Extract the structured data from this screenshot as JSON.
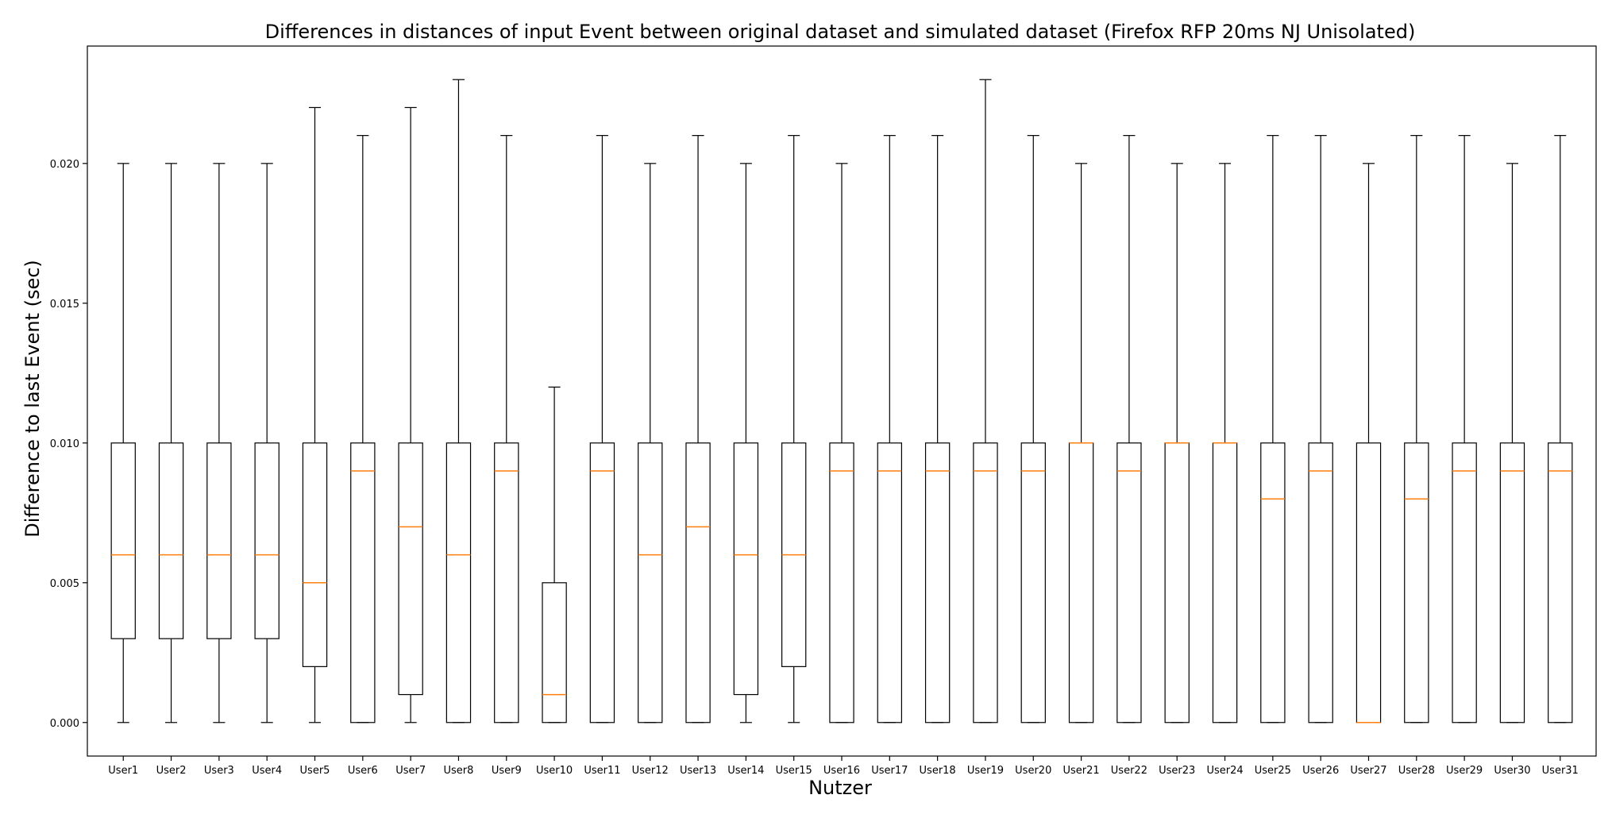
{
  "chart_data": {
    "type": "box",
    "title": "Differences in distances of input Event between original dataset and simulated dataset (Firefox RFP 20ms NJ Unisolated)",
    "xlabel": "Nutzer",
    "ylabel": "Difference to last Event (sec)",
    "ylim": [
      -0.0012,
      0.0242
    ],
    "yticks": [
      "0.000",
      "0.005",
      "0.010",
      "0.015",
      "0.020"
    ],
    "yticks_values": [
      0.0,
      0.005,
      0.01,
      0.015,
      0.02
    ],
    "grid": false,
    "colors": {
      "box": "#000000",
      "median": "#ff7f0e"
    },
    "categories": [
      "User1",
      "User2",
      "User3",
      "User4",
      "User5",
      "User6",
      "User7",
      "User8",
      "User9",
      "User10",
      "User11",
      "User12",
      "User13",
      "User14",
      "User15",
      "User16",
      "User17",
      "User18",
      "User19",
      "User20",
      "User21",
      "User22",
      "User23",
      "User24",
      "User25",
      "User26",
      "User27",
      "User28",
      "User29",
      "User30",
      "User31"
    ],
    "boxes": [
      {
        "whislo": 0.0,
        "q1": 0.003,
        "med": 0.006,
        "q3": 0.01,
        "whishi": 0.02
      },
      {
        "whislo": 0.0,
        "q1": 0.003,
        "med": 0.006,
        "q3": 0.01,
        "whishi": 0.02
      },
      {
        "whislo": 0.0,
        "q1": 0.003,
        "med": 0.006,
        "q3": 0.01,
        "whishi": 0.02
      },
      {
        "whislo": 0.0,
        "q1": 0.003,
        "med": 0.006,
        "q3": 0.01,
        "whishi": 0.02
      },
      {
        "whislo": 0.0,
        "q1": 0.002,
        "med": 0.005,
        "q3": 0.01,
        "whishi": 0.022
      },
      {
        "whislo": 0.0,
        "q1": 0.0,
        "med": 0.009,
        "q3": 0.01,
        "whishi": 0.021
      },
      {
        "whislo": 0.0,
        "q1": 0.001,
        "med": 0.007,
        "q3": 0.01,
        "whishi": 0.022
      },
      {
        "whislo": 0.0,
        "q1": 0.0,
        "med": 0.006,
        "q3": 0.01,
        "whishi": 0.023
      },
      {
        "whislo": 0.0,
        "q1": 0.0,
        "med": 0.009,
        "q3": 0.01,
        "whishi": 0.021
      },
      {
        "whislo": 0.0,
        "q1": 0.0,
        "med": 0.001,
        "q3": 0.005,
        "whishi": 0.012
      },
      {
        "whislo": 0.0,
        "q1": 0.0,
        "med": 0.009,
        "q3": 0.01,
        "whishi": 0.021
      },
      {
        "whislo": 0.0,
        "q1": 0.0,
        "med": 0.006,
        "q3": 0.01,
        "whishi": 0.02
      },
      {
        "whislo": 0.0,
        "q1": 0.0,
        "med": 0.007,
        "q3": 0.01,
        "whishi": 0.021
      },
      {
        "whislo": 0.0,
        "q1": 0.001,
        "med": 0.006,
        "q3": 0.01,
        "whishi": 0.02
      },
      {
        "whislo": 0.0,
        "q1": 0.002,
        "med": 0.006,
        "q3": 0.01,
        "whishi": 0.021
      },
      {
        "whislo": 0.0,
        "q1": 0.0,
        "med": 0.009,
        "q3": 0.01,
        "whishi": 0.02
      },
      {
        "whislo": 0.0,
        "q1": 0.0,
        "med": 0.009,
        "q3": 0.01,
        "whishi": 0.021
      },
      {
        "whislo": 0.0,
        "q1": 0.0,
        "med": 0.009,
        "q3": 0.01,
        "whishi": 0.021
      },
      {
        "whislo": 0.0,
        "q1": 0.0,
        "med": 0.009,
        "q3": 0.01,
        "whishi": 0.023
      },
      {
        "whislo": 0.0,
        "q1": 0.0,
        "med": 0.009,
        "q3": 0.01,
        "whishi": 0.021
      },
      {
        "whislo": 0.0,
        "q1": 0.0,
        "med": 0.01,
        "q3": 0.01,
        "whishi": 0.02
      },
      {
        "whislo": 0.0,
        "q1": 0.0,
        "med": 0.009,
        "q3": 0.01,
        "whishi": 0.021
      },
      {
        "whislo": 0.0,
        "q1": 0.0,
        "med": 0.01,
        "q3": 0.01,
        "whishi": 0.02
      },
      {
        "whislo": 0.0,
        "q1": 0.0,
        "med": 0.01,
        "q3": 0.01,
        "whishi": 0.02
      },
      {
        "whislo": 0.0,
        "q1": 0.0,
        "med": 0.008,
        "q3": 0.01,
        "whishi": 0.021
      },
      {
        "whislo": 0.0,
        "q1": 0.0,
        "med": 0.009,
        "q3": 0.01,
        "whishi": 0.021
      },
      {
        "whislo": 0.0,
        "q1": 0.0,
        "med": 0.0,
        "q3": 0.01,
        "whishi": 0.02
      },
      {
        "whislo": 0.0,
        "q1": 0.0,
        "med": 0.008,
        "q3": 0.01,
        "whishi": 0.021
      },
      {
        "whislo": 0.0,
        "q1": 0.0,
        "med": 0.009,
        "q3": 0.01,
        "whishi": 0.021
      },
      {
        "whislo": 0.0,
        "q1": 0.0,
        "med": 0.009,
        "q3": 0.01,
        "whishi": 0.02
      },
      {
        "whislo": 0.0,
        "q1": 0.0,
        "med": 0.009,
        "q3": 0.01,
        "whishi": 0.021
      }
    ]
  }
}
